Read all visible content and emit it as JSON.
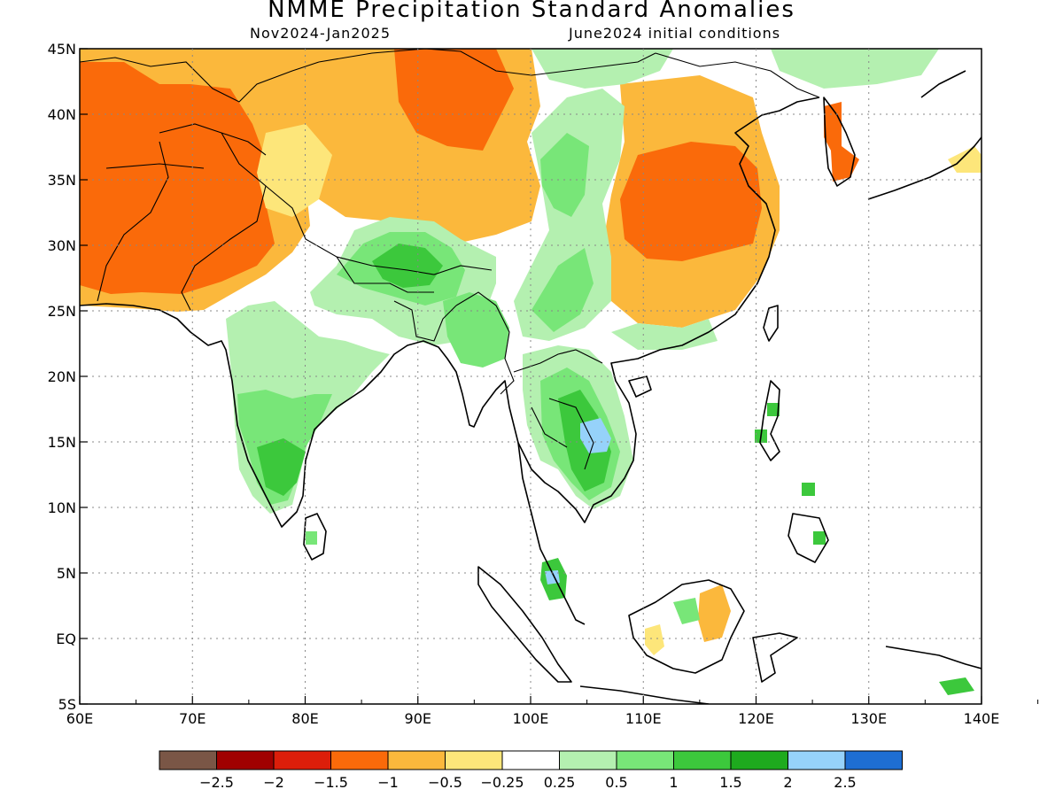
{
  "header": {
    "title": "NMME Precipitation Standard Anomalies",
    "period": "Nov2024-Jan2025",
    "initial": "June2024 initial conditions"
  },
  "map": {
    "lon_range": [
      60,
      140
    ],
    "lat_range": [
      -5,
      45
    ],
    "x_ticks": [
      "60E",
      "70E",
      "80E",
      "90E",
      "100E",
      "110E",
      "120E",
      "130E",
      "140E"
    ],
    "y_ticks": [
      "5S",
      "EQ",
      "5N",
      "10N",
      "15N",
      "20N",
      "25N",
      "30N",
      "35N",
      "40N",
      "45N"
    ]
  },
  "colorbar": {
    "colors": [
      "#7a5646",
      "#a00000",
      "#dc1e0a",
      "#fa6a0a",
      "#fbb83c",
      "#fde67a",
      "#ffffff",
      "#b4f0b0",
      "#78e678",
      "#3cc83c",
      "#1eaa1e",
      "#96d2fa",
      "#1e6ed2"
    ],
    "labels": [
      "−2.5",
      "−2",
      "−1.5",
      "−1",
      "−0.5",
      "−0.25",
      "0.25",
      "0.5",
      "1",
      "1.5",
      "2",
      "2.5"
    ]
  }
}
